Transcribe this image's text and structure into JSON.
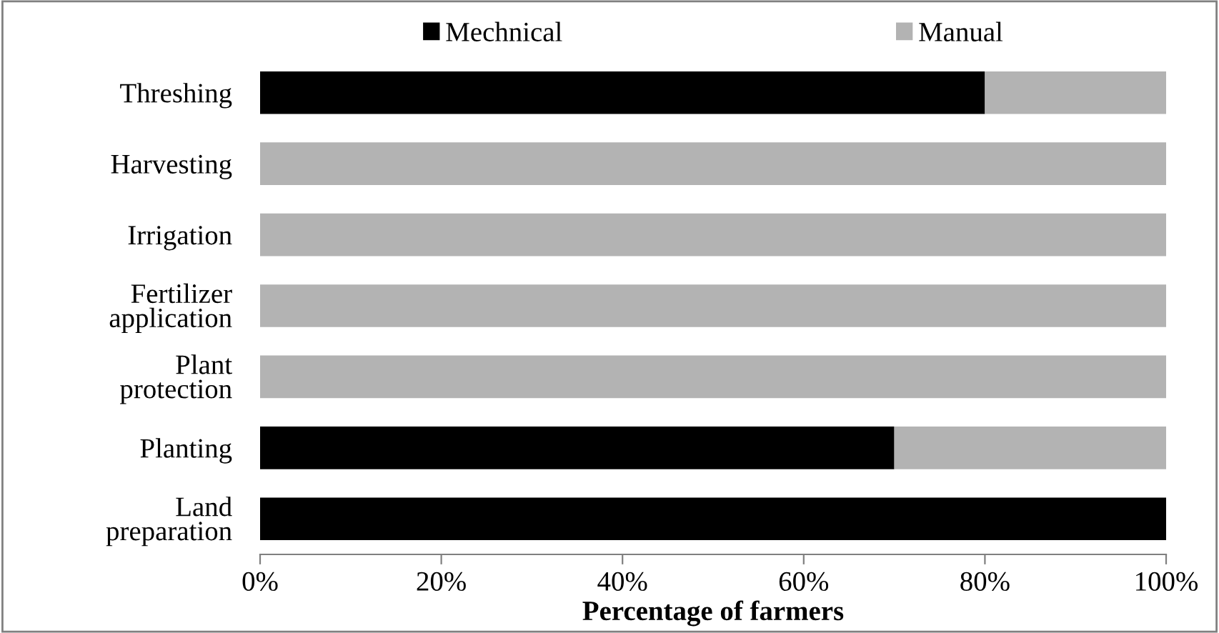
{
  "chart_data": {
    "type": "bar",
    "orientation": "horizontal",
    "stacked": true,
    "xlabel": "Percentage of farmers",
    "categories": [
      "Threshing",
      "Harvesting",
      "Irrigation",
      "Fertilizer\napplication",
      "Plant\nprotection",
      "Planting",
      "Land\npreparation"
    ],
    "series": [
      {
        "name": "Mechnical",
        "color": "#000000",
        "values": [
          80,
          0,
          0,
          0,
          0,
          70,
          100
        ]
      },
      {
        "name": "Manual",
        "color": "#b3b3b3",
        "values": [
          20,
          100,
          100,
          100,
          100,
          30,
          0
        ]
      }
    ],
    "xlim": [
      0,
      100
    ],
    "xticks": [
      {
        "value": 0,
        "label": "0%"
      },
      {
        "value": 20,
        "label": "20%"
      },
      {
        "value": 40,
        "label": "40%"
      },
      {
        "value": 60,
        "label": "60%"
      },
      {
        "value": 80,
        "label": "80%"
      },
      {
        "value": 100,
        "label": "100%"
      }
    ],
    "legend": "top",
    "grid": false
  }
}
